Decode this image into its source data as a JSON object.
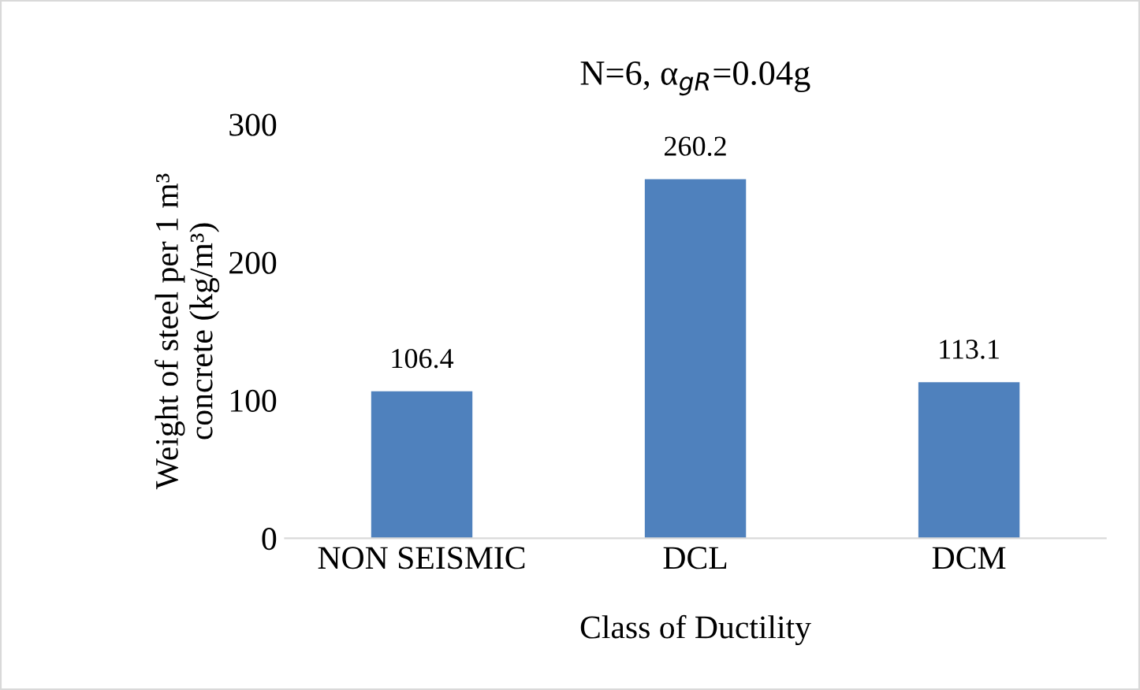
{
  "chart_data": {
    "type": "bar",
    "title": "N=6, α$_{gR}$=0.04g",
    "xlabel": "Class of Ductility",
    "ylabel": "Weight of steel per 1 m³\nconcrete (kg/m³)",
    "categories": [
      "NON SEISMIC",
      "DCL",
      "DCM"
    ],
    "values": [
      106.4,
      260.2,
      113.1
    ],
    "color": "#4f81bd",
    "ylim": [
      0,
      300
    ],
    "yticks": [
      0,
      100,
      200,
      300
    ],
    "grid": false,
    "data_labels": true
  }
}
